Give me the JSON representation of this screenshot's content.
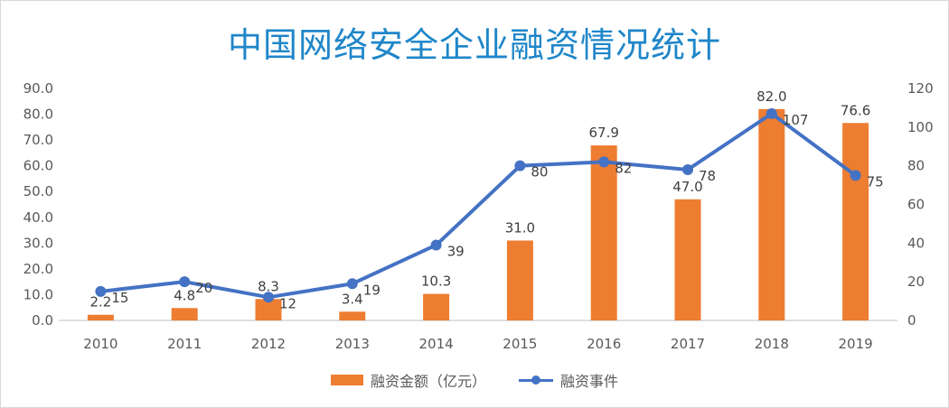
{
  "title": "中国网络安全企业融资情况统计",
  "chart_data": {
    "type": "bar",
    "title": "中国网络安全企业融资情况统计",
    "categories": [
      "2010",
      "2011",
      "2012",
      "2013",
      "2014",
      "2015",
      "2016",
      "2017",
      "2018",
      "2019"
    ],
    "series": [
      {
        "name": "融资金额（亿元）",
        "type": "bar",
        "axis": "left",
        "values": [
          2.2,
          4.8,
          8.3,
          3.4,
          10.3,
          31.0,
          67.9,
          47.0,
          82.0,
          76.6
        ],
        "labels": [
          "2.2",
          "4.8",
          "8.3",
          "3.4",
          "10.3",
          "31.0",
          "67.9",
          "47.0",
          "82.0",
          "76.6"
        ],
        "color": "#ed7d31"
      },
      {
        "name": "融资事件",
        "type": "line",
        "axis": "right",
        "values": [
          15,
          20,
          12,
          19,
          39,
          80,
          82,
          78,
          107,
          75
        ],
        "labels": [
          "15",
          "20",
          "12",
          "19",
          "39",
          "80",
          "82",
          "78",
          "107",
          "75"
        ],
        "color": "#4472c4"
      }
    ],
    "y_left": {
      "ylim": [
        0,
        90
      ],
      "ticks": [
        "0.0",
        "10.0",
        "20.0",
        "30.0",
        "40.0",
        "50.0",
        "60.0",
        "70.0",
        "80.0",
        "90.0"
      ]
    },
    "y_right": {
      "ylim": [
        0,
        120
      ],
      "ticks": [
        "0",
        "20",
        "40",
        "60",
        "80",
        "100",
        "120"
      ]
    },
    "grid": false,
    "legend": "bottom"
  },
  "legend": {
    "bar_label": "融资金额（亿元）",
    "line_label": "融资事件"
  }
}
